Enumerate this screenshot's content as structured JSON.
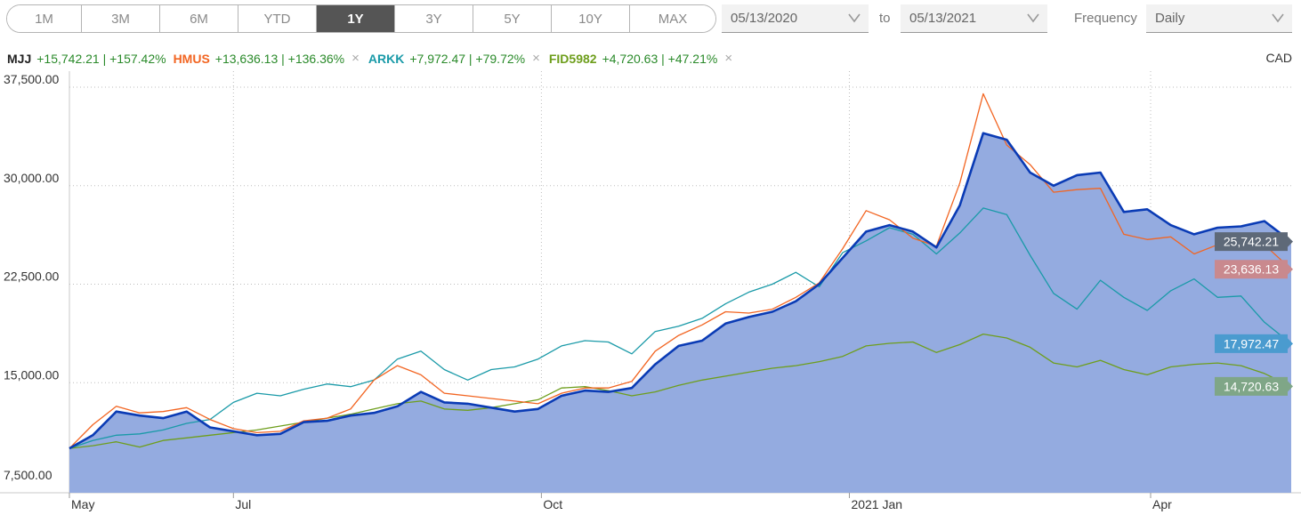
{
  "ranges": [
    "1M",
    "3M",
    "6M",
    "YTD",
    "1Y",
    "3Y",
    "5Y",
    "10Y",
    "MAX"
  ],
  "active_range": "1Y",
  "date_from": "05/13/2020",
  "to_label": "to",
  "date_to": "05/13/2021",
  "frequency_label": "Frequency",
  "frequency_value": "Daily",
  "currency": "CAD",
  "legend": [
    {
      "name": "MJJ",
      "change": "+15,742.21 | +157.42%",
      "removable": false
    },
    {
      "name": "HMUS",
      "change": "+13,636.13 | +136.36%",
      "removable": true
    },
    {
      "name": "ARKK",
      "change": "+7,972.47 | +79.72%",
      "removable": true
    },
    {
      "name": "FID5982",
      "change": "+4,720.63 | +47.21%",
      "removable": true
    }
  ],
  "colors": {
    "MJJ": "#0a3bb5",
    "MJJ_fill": "#94abe0",
    "HMUS": "#f26522",
    "ARKK": "#1a9aa8",
    "FID5982": "#6e9e1c"
  },
  "chart_data": {
    "type": "line",
    "ylim": [
      7500,
      37500
    ],
    "yticks": [
      "37,500.00",
      "30,000.00",
      "22,500.00",
      "15,000.00",
      "7,500.00"
    ],
    "xticks": [
      "May",
      "Jul",
      "Oct",
      "2021 Jan",
      "Apr"
    ],
    "x_range": [
      "2020-05-13",
      "2021-05-13"
    ],
    "grid": true,
    "series": [
      {
        "name": "MJJ",
        "area": true,
        "last_label": "25,742.21",
        "badge_color": "#5e6978",
        "points": [
          [
            "2020-05-13",
            10000
          ],
          [
            "2020-05-20",
            11000
          ],
          [
            "2020-05-27",
            12800
          ],
          [
            "2020-06-03",
            12500
          ],
          [
            "2020-06-10",
            12300
          ],
          [
            "2020-06-17",
            12800
          ],
          [
            "2020-06-24",
            11600
          ],
          [
            "2020-07-01",
            11300
          ],
          [
            "2020-07-08",
            11000
          ],
          [
            "2020-07-15",
            11100
          ],
          [
            "2020-07-22",
            12000
          ],
          [
            "2020-07-29",
            12100
          ],
          [
            "2020-08-05",
            12500
          ],
          [
            "2020-08-12",
            12700
          ],
          [
            "2020-08-19",
            13200
          ],
          [
            "2020-08-26",
            14300
          ],
          [
            "2020-09-02",
            13500
          ],
          [
            "2020-09-09",
            13400
          ],
          [
            "2020-09-16",
            13100
          ],
          [
            "2020-09-23",
            12800
          ],
          [
            "2020-09-30",
            13000
          ],
          [
            "2020-10-07",
            14000
          ],
          [
            "2020-10-14",
            14400
          ],
          [
            "2020-10-21",
            14300
          ],
          [
            "2020-10-28",
            14600
          ],
          [
            "2020-11-04",
            16400
          ],
          [
            "2020-11-11",
            17800
          ],
          [
            "2020-11-18",
            18200
          ],
          [
            "2020-11-25",
            19500
          ],
          [
            "2020-12-02",
            20000
          ],
          [
            "2020-12-09",
            20400
          ],
          [
            "2020-12-16",
            21200
          ],
          [
            "2020-12-23",
            22500
          ],
          [
            "2020-12-30",
            24500
          ],
          [
            "2021-01-06",
            26500
          ],
          [
            "2021-01-13",
            27000
          ],
          [
            "2021-01-20",
            26500
          ],
          [
            "2021-01-27",
            25300
          ],
          [
            "2021-02-03",
            28500
          ],
          [
            "2021-02-10",
            34000
          ],
          [
            "2021-02-17",
            33500
          ],
          [
            "2021-02-24",
            31000
          ],
          [
            "2021-03-03",
            30000
          ],
          [
            "2021-03-10",
            30800
          ],
          [
            "2021-03-17",
            31000
          ],
          [
            "2021-03-24",
            28000
          ],
          [
            "2021-03-31",
            28200
          ],
          [
            "2021-04-07",
            27000
          ],
          [
            "2021-04-14",
            26300
          ],
          [
            "2021-04-21",
            26800
          ],
          [
            "2021-04-28",
            26900
          ],
          [
            "2021-05-05",
            27300
          ],
          [
            "2021-05-13",
            25742.21
          ]
        ]
      },
      {
        "name": "HMUS",
        "area": false,
        "last_label": "23,636.13",
        "badge_color": "#c9898e",
        "points": [
          [
            "2020-05-13",
            10000
          ],
          [
            "2020-05-20",
            11800
          ],
          [
            "2020-05-27",
            13200
          ],
          [
            "2020-06-03",
            12700
          ],
          [
            "2020-06-10",
            12800
          ],
          [
            "2020-06-17",
            13100
          ],
          [
            "2020-06-24",
            12200
          ],
          [
            "2020-07-01",
            11500
          ],
          [
            "2020-07-08",
            11200
          ],
          [
            "2020-07-15",
            11300
          ],
          [
            "2020-07-22",
            12100
          ],
          [
            "2020-07-29",
            12300
          ],
          [
            "2020-08-05",
            13000
          ],
          [
            "2020-08-12",
            15200
          ],
          [
            "2020-08-19",
            16300
          ],
          [
            "2020-08-26",
            15600
          ],
          [
            "2020-09-02",
            14200
          ],
          [
            "2020-09-09",
            14000
          ],
          [
            "2020-09-16",
            13800
          ],
          [
            "2020-09-23",
            13600
          ],
          [
            "2020-09-30",
            13400
          ],
          [
            "2020-10-07",
            14200
          ],
          [
            "2020-10-14",
            14600
          ],
          [
            "2020-10-21",
            14600
          ],
          [
            "2020-10-28",
            15100
          ],
          [
            "2020-11-04",
            17400
          ],
          [
            "2020-11-11",
            18600
          ],
          [
            "2020-11-18",
            19400
          ],
          [
            "2020-11-25",
            20400
          ],
          [
            "2020-12-02",
            20300
          ],
          [
            "2020-12-09",
            20600
          ],
          [
            "2020-12-16",
            21500
          ],
          [
            "2020-12-23",
            22600
          ],
          [
            "2020-12-30",
            25200
          ],
          [
            "2021-01-06",
            28100
          ],
          [
            "2021-01-13",
            27400
          ],
          [
            "2021-01-20",
            26000
          ],
          [
            "2021-01-27",
            25400
          ],
          [
            "2021-02-03",
            30200
          ],
          [
            "2021-02-10",
            37000
          ],
          [
            "2021-02-17",
            33100
          ],
          [
            "2021-02-24",
            31600
          ],
          [
            "2021-03-03",
            29500
          ],
          [
            "2021-03-10",
            29700
          ],
          [
            "2021-03-17",
            29800
          ],
          [
            "2021-03-24",
            26300
          ],
          [
            "2021-03-31",
            25900
          ],
          [
            "2021-04-07",
            26100
          ],
          [
            "2021-04-14",
            24800
          ],
          [
            "2021-04-21",
            25500
          ],
          [
            "2021-04-28",
            25300
          ],
          [
            "2021-05-05",
            25500
          ],
          [
            "2021-05-13",
            23636.13
          ]
        ]
      },
      {
        "name": "ARKK",
        "area": false,
        "last_label": "17,972.47",
        "badge_color": "#4a9bcf",
        "points": [
          [
            "2020-05-13",
            10000
          ],
          [
            "2020-05-20",
            10600
          ],
          [
            "2020-05-27",
            11000
          ],
          [
            "2020-06-03",
            11100
          ],
          [
            "2020-06-10",
            11400
          ],
          [
            "2020-06-17",
            11900
          ],
          [
            "2020-06-24",
            12200
          ],
          [
            "2020-07-01",
            13500
          ],
          [
            "2020-07-08",
            14200
          ],
          [
            "2020-07-15",
            14000
          ],
          [
            "2020-07-22",
            14500
          ],
          [
            "2020-07-29",
            14900
          ],
          [
            "2020-08-05",
            14700
          ],
          [
            "2020-08-12",
            15200
          ],
          [
            "2020-08-19",
            16800
          ],
          [
            "2020-08-26",
            17400
          ],
          [
            "2020-09-02",
            16000
          ],
          [
            "2020-09-09",
            15200
          ],
          [
            "2020-09-16",
            16000
          ],
          [
            "2020-09-23",
            16200
          ],
          [
            "2020-09-30",
            16800
          ],
          [
            "2020-10-07",
            17800
          ],
          [
            "2020-10-14",
            18200
          ],
          [
            "2020-10-21",
            18100
          ],
          [
            "2020-10-28",
            17200
          ],
          [
            "2020-11-04",
            18900
          ],
          [
            "2020-11-11",
            19300
          ],
          [
            "2020-11-18",
            19900
          ],
          [
            "2020-11-25",
            21000
          ],
          [
            "2020-12-02",
            21900
          ],
          [
            "2020-12-09",
            22500
          ],
          [
            "2020-12-16",
            23400
          ],
          [
            "2020-12-23",
            22300
          ],
          [
            "2020-12-30",
            24900
          ],
          [
            "2021-01-06",
            25800
          ],
          [
            "2021-01-13",
            26800
          ],
          [
            "2021-01-20",
            26300
          ],
          [
            "2021-01-27",
            24800
          ],
          [
            "2021-02-03",
            26400
          ],
          [
            "2021-02-10",
            28300
          ],
          [
            "2021-02-17",
            27800
          ],
          [
            "2021-02-24",
            24700
          ],
          [
            "2021-03-03",
            21800
          ],
          [
            "2021-03-10",
            20600
          ],
          [
            "2021-03-17",
            22800
          ],
          [
            "2021-03-24",
            21500
          ],
          [
            "2021-03-31",
            20500
          ],
          [
            "2021-04-07",
            22000
          ],
          [
            "2021-04-14",
            22900
          ],
          [
            "2021-04-21",
            21500
          ],
          [
            "2021-04-28",
            21600
          ],
          [
            "2021-05-05",
            19600
          ],
          [
            "2021-05-13",
            17972.47
          ]
        ]
      },
      {
        "name": "FID5982",
        "area": false,
        "last_label": "14,720.63",
        "badge_color": "#7fa687",
        "points": [
          [
            "2020-05-13",
            10000
          ],
          [
            "2020-05-20",
            10200
          ],
          [
            "2020-05-27",
            10500
          ],
          [
            "2020-06-03",
            10100
          ],
          [
            "2020-06-10",
            10600
          ],
          [
            "2020-06-17",
            10800
          ],
          [
            "2020-06-24",
            11000
          ],
          [
            "2020-07-01",
            11200
          ],
          [
            "2020-07-08",
            11400
          ],
          [
            "2020-07-15",
            11700
          ],
          [
            "2020-07-22",
            12000
          ],
          [
            "2020-07-29",
            12300
          ],
          [
            "2020-08-05",
            12600
          ],
          [
            "2020-08-12",
            13000
          ],
          [
            "2020-08-19",
            13400
          ],
          [
            "2020-08-26",
            13600
          ],
          [
            "2020-09-02",
            13000
          ],
          [
            "2020-09-09",
            12900
          ],
          [
            "2020-09-16",
            13100
          ],
          [
            "2020-09-23",
            13400
          ],
          [
            "2020-09-30",
            13700
          ],
          [
            "2020-10-07",
            14600
          ],
          [
            "2020-10-14",
            14700
          ],
          [
            "2020-10-21",
            14400
          ],
          [
            "2020-10-28",
            14000
          ],
          [
            "2020-11-04",
            14300
          ],
          [
            "2020-11-11",
            14800
          ],
          [
            "2020-11-18",
            15200
          ],
          [
            "2020-11-25",
            15500
          ],
          [
            "2020-12-02",
            15800
          ],
          [
            "2020-12-09",
            16100
          ],
          [
            "2020-12-16",
            16300
          ],
          [
            "2020-12-23",
            16600
          ],
          [
            "2020-12-30",
            17000
          ],
          [
            "2021-01-06",
            17800
          ],
          [
            "2021-01-13",
            18000
          ],
          [
            "2021-01-20",
            18100
          ],
          [
            "2021-01-27",
            17300
          ],
          [
            "2021-02-03",
            17900
          ],
          [
            "2021-02-10",
            18700
          ],
          [
            "2021-02-17",
            18400
          ],
          [
            "2021-02-24",
            17700
          ],
          [
            "2021-03-03",
            16500
          ],
          [
            "2021-03-10",
            16200
          ],
          [
            "2021-03-17",
            16700
          ],
          [
            "2021-03-24",
            16000
          ],
          [
            "2021-03-31",
            15600
          ],
          [
            "2021-04-07",
            16200
          ],
          [
            "2021-04-14",
            16400
          ],
          [
            "2021-04-21",
            16500
          ],
          [
            "2021-04-28",
            16300
          ],
          [
            "2021-05-05",
            15700
          ],
          [
            "2021-05-13",
            14720.63
          ]
        ]
      }
    ]
  }
}
